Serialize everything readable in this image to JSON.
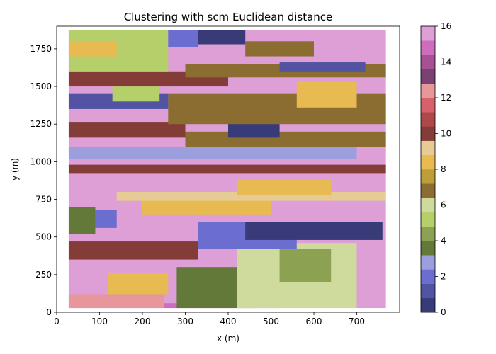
{
  "chart_data": {
    "type": "heatmap",
    "title": "Clustering with scm Euclidean distance",
    "xlabel": "x (m)",
    "ylabel": "y (m)",
    "xlim": [
      0,
      800
    ],
    "ylim": [
      1900,
      0
    ],
    "xticks": [
      0,
      100,
      200,
      300,
      400,
      500,
      600,
      700
    ],
    "yticks": [
      0,
      250,
      500,
      750,
      1000,
      1250,
      1500,
      1750
    ],
    "data_extent": {
      "x": [
        28,
        768
      ],
      "y": [
        28,
        1875
      ]
    },
    "colormap": "tab20b",
    "colorbar": {
      "range": [
        0,
        16
      ],
      "ticks": [
        0,
        2,
        4,
        6,
        8,
        10,
        12,
        14,
        16
      ],
      "colors": [
        "#393b79",
        "#5254a3",
        "#6b6ecf",
        "#9c9ede",
        "#637939",
        "#8ca252",
        "#b5cf6b",
        "#cedb9c",
        "#8c6d31",
        "#bd9e39",
        "#e7ba52",
        "#e7cb94",
        "#843c39",
        "#ad494a",
        "#d6616b",
        "#e7969c",
        "#7b4173",
        "#a55194",
        "#ce6dbd",
        "#de9ed6"
      ]
    },
    "bands": [
      {
        "cluster": 19,
        "x": [
          28,
          768
        ],
        "y": [
          28,
          1875
        ]
      },
      {
        "cluster": 18,
        "x": [
          28,
          520
        ],
        "y": [
          28,
          60
        ]
      },
      {
        "cluster": 15,
        "x": [
          28,
          250
        ],
        "y": [
          28,
          120
        ]
      },
      {
        "cluster": 10,
        "x": [
          120,
          260
        ],
        "y": [
          120,
          260
        ]
      },
      {
        "cluster": 4,
        "x": [
          280,
          460
        ],
        "y": [
          28,
          300
        ]
      },
      {
        "cluster": 7,
        "x": [
          420,
          700
        ],
        "y": [
          28,
          460
        ]
      },
      {
        "cluster": 5,
        "x": [
          520,
          640
        ],
        "y": [
          200,
          420
        ]
      },
      {
        "cluster": 12,
        "x": [
          28,
          330
        ],
        "y": [
          350,
          470
        ]
      },
      {
        "cluster": 2,
        "x": [
          330,
          560
        ],
        "y": [
          420,
          600
        ]
      },
      {
        "cluster": 0,
        "x": [
          440,
          760
        ],
        "y": [
          480,
          600
        ]
      },
      {
        "cluster": 4,
        "x": [
          28,
          90
        ],
        "y": [
          520,
          700
        ]
      },
      {
        "cluster": 2,
        "x": [
          90,
          140
        ],
        "y": [
          560,
          680
        ]
      },
      {
        "cluster": 10,
        "x": [
          200,
          500
        ],
        "y": [
          650,
          760
        ]
      },
      {
        "cluster": 11,
        "x": [
          140,
          768
        ],
        "y": [
          740,
          800
        ]
      },
      {
        "cluster": 10,
        "x": [
          420,
          640
        ],
        "y": [
          780,
          880
        ]
      },
      {
        "cluster": 12,
        "x": [
          28,
          768
        ],
        "y": [
          920,
          980
        ]
      },
      {
        "cluster": 3,
        "x": [
          28,
          700
        ],
        "y": [
          1020,
          1100
        ]
      },
      {
        "cluster": 8,
        "x": [
          300,
          768
        ],
        "y": [
          1100,
          1200
        ]
      },
      {
        "cluster": 0,
        "x": [
          400,
          520
        ],
        "y": [
          1160,
          1260
        ]
      },
      {
        "cluster": 12,
        "x": [
          28,
          300
        ],
        "y": [
          1160,
          1260
        ]
      },
      {
        "cluster": 8,
        "x": [
          260,
          768
        ],
        "y": [
          1250,
          1450
        ]
      },
      {
        "cluster": 10,
        "x": [
          560,
          700
        ],
        "y": [
          1360,
          1530
        ]
      },
      {
        "cluster": 1,
        "x": [
          28,
          260
        ],
        "y": [
          1350,
          1450
        ]
      },
      {
        "cluster": 6,
        "x": [
          130,
          240
        ],
        "y": [
          1400,
          1500
        ]
      },
      {
        "cluster": 12,
        "x": [
          28,
          400
        ],
        "y": [
          1500,
          1600
        ]
      },
      {
        "cluster": 6,
        "x": [
          28,
          260
        ],
        "y": [
          1600,
          1875
        ]
      },
      {
        "cluster": 8,
        "x": [
          300,
          768
        ],
        "y": [
          1560,
          1650
        ]
      },
      {
        "cluster": 1,
        "x": [
          520,
          720
        ],
        "y": [
          1600,
          1660
        ]
      },
      {
        "cluster": 0,
        "x": [
          280,
          440
        ],
        "y": [
          1780,
          1875
        ]
      },
      {
        "cluster": 2,
        "x": [
          260,
          330
        ],
        "y": [
          1760,
          1875
        ]
      },
      {
        "cluster": 8,
        "x": [
          440,
          600
        ],
        "y": [
          1700,
          1800
        ]
      },
      {
        "cluster": 10,
        "x": [
          28,
          140
        ],
        "y": [
          1700,
          1800
        ]
      }
    ]
  }
}
